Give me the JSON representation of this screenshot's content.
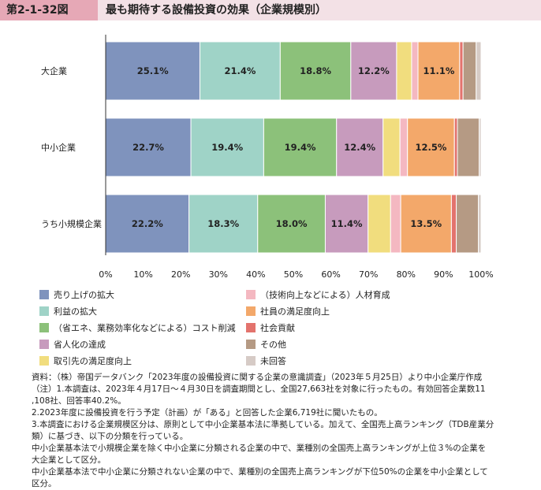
{
  "header": {
    "figure_number": "第2-1-32図",
    "title": "最も期待する設備投資の効果（企業規模別）"
  },
  "chart_data": {
    "type": "bar",
    "orientation": "horizontal",
    "stacked": true,
    "categories": [
      "大企業",
      "中小企業",
      "うち小規模企業"
    ],
    "xlim": [
      0,
      100
    ],
    "x_ticks": [
      "0%",
      "10%",
      "20%",
      "30%",
      "40%",
      "50%",
      "60%",
      "70%",
      "80%",
      "90%",
      "100%"
    ],
    "legend_position": "bottom",
    "series": [
      {
        "name": "売り上げの拡大",
        "color": "#7f93bd",
        "values": [
          25.1,
          22.7,
          22.2
        ],
        "labels": [
          "25.1%",
          "22.7%",
          "22.2%"
        ]
      },
      {
        "name": "利益の拡大",
        "color": "#9fd3c7",
        "values": [
          21.4,
          19.4,
          18.3
        ],
        "labels": [
          "21.4%",
          "19.4%",
          "18.3%"
        ]
      },
      {
        "name": "（省エネ、業務効率化などによる）コスト削減",
        "color": "#8cc17a",
        "values": [
          18.8,
          19.4,
          18.0
        ],
        "labels": [
          "18.8%",
          "19.4%",
          "18.0%"
        ]
      },
      {
        "name": "省人化の達成",
        "color": "#c79bbd",
        "values": [
          12.2,
          12.4,
          11.4
        ],
        "labels": [
          "12.2%",
          "12.4%",
          "11.4%"
        ]
      },
      {
        "name": "取引先の満足度向上",
        "color": "#f1dd7e",
        "values": [
          4.0,
          4.5,
          6.0
        ],
        "labels": [
          "",
          "",
          ""
        ]
      },
      {
        "name": "（技術向上などによる）人材育成",
        "color": "#f4b8c1",
        "values": [
          1.7,
          2.0,
          2.7
        ],
        "labels": [
          "",
          "",
          ""
        ]
      },
      {
        "name": "社員の満足度向上",
        "color": "#f3a86a",
        "values": [
          11.1,
          12.5,
          13.5
        ],
        "labels": [
          "11.1%",
          "12.5%",
          "13.5%"
        ]
      },
      {
        "name": "社会貢献",
        "color": "#e3736d",
        "values": [
          0.9,
          0.8,
          1.3
        ],
        "labels": [
          "",
          "",
          ""
        ]
      },
      {
        "name": "その他",
        "color": "#b59a84",
        "values": [
          3.5,
          5.8,
          5.9
        ],
        "labels": [
          "",
          "",
          ""
        ]
      },
      {
        "name": "未回答",
        "color": "#d6cbc6",
        "values": [
          1.3,
          0.5,
          0.7
        ],
        "labels": [
          "",
          "",
          ""
        ]
      }
    ]
  },
  "legend": {
    "left": [
      {
        "label": "売り上げの拡大",
        "color": "#7f93bd"
      },
      {
        "label": "利益の拡大",
        "color": "#9fd3c7"
      },
      {
        "label": "（省エネ、業務効率化などによる）コスト削減",
        "color": "#8cc17a"
      },
      {
        "label": "省人化の達成",
        "color": "#c79bbd"
      },
      {
        "label": "取引先の満足度向上",
        "color": "#f1dd7e"
      }
    ],
    "right": [
      {
        "label": "（技術向上などによる）人材育成",
        "color": "#f4b8c1"
      },
      {
        "label": "社員の満足度向上",
        "color": "#f3a86a"
      },
      {
        "label": "社会貢献",
        "color": "#e3736d"
      },
      {
        "label": "その他",
        "color": "#b59a84"
      },
      {
        "label": "未回答",
        "color": "#d6cbc6"
      }
    ]
  },
  "notes": [
    "資料：（株）帝国データバンク「2023年度の設備投資に関する企業の意識調査」（2023年５月25日）より中小企業庁作成",
    "（注）1.本調査は、2023年４月17日～４月30日を調査期間とし、全国27,663社を対象に行ったもの。有効回答企業数11",
    ",108社、回答率40.2%。",
    "2.2023年度に設備投資を行う予定（計画）が「ある」と回答した企業6,719社に聞いたもの。",
    "3.本調査における企業規模区分は、原則として中小企業基本法に準拠している。加えて、全国売上高ランキング（TDB産業分",
    "類）に基づき、以下の分類を行っている。",
    "中小企業基本法で小規模企業を除く中小企業に分類される企業の中で、業種別の全国売上高ランキングが上位３%の企業を",
    "大企業として区分。",
    "中小企業基本法で中小企業に分類されない企業の中で、業種別の全国売上高ランキングが下位50%の企業を中小企業として",
    "区分。"
  ]
}
